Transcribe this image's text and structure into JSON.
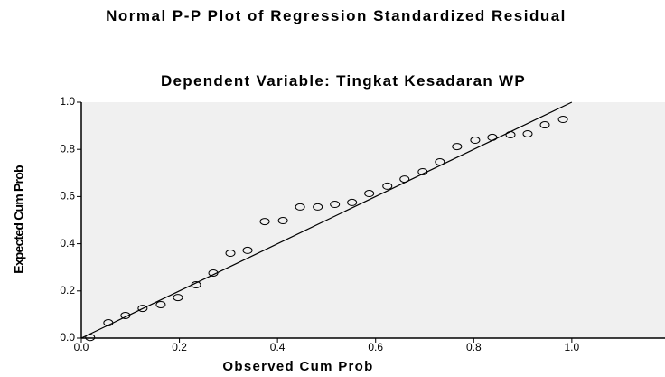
{
  "chart_data": {
    "type": "scatter",
    "title": "Normal P-P Plot of Regression Standardized Residual",
    "subtitle": "Dependent Variable: Tingkat Kesadaran WP",
    "xlabel": "Observed Cum Prob",
    "ylabel": "Expected Cum Prob",
    "x": [
      0.018,
      0.055,
      0.09,
      0.125,
      0.162,
      0.197,
      0.234,
      0.269,
      0.304,
      0.339,
      0.374,
      0.411,
      0.446,
      0.482,
      0.517,
      0.552,
      0.587,
      0.624,
      0.659,
      0.696,
      0.731,
      0.766,
      0.803,
      0.838,
      0.875,
      0.91,
      0.945,
      0.982
    ],
    "values": [
      0.003,
      0.065,
      0.096,
      0.126,
      0.142,
      0.172,
      0.226,
      0.276,
      0.36,
      0.372,
      0.494,
      0.498,
      0.556,
      0.556,
      0.567,
      0.575,
      0.613,
      0.644,
      0.674,
      0.705,
      0.747,
      0.812,
      0.839,
      0.851,
      0.862,
      0.866,
      0.904,
      0.927
    ],
    "color": "#000000",
    "xlim": [
      0,
      1.19
    ],
    "ylim": [
      0,
      1
    ],
    "xticks": [
      {
        "value": 0,
        "label": "0.0"
      },
      0.2,
      0.4,
      0.6,
      0.8,
      {
        "value": 1,
        "label": "1.0"
      }
    ],
    "yticks": [
      {
        "value": 0,
        "label": "0.0"
      },
      0.2,
      0.4,
      0.6,
      0.8,
      {
        "value": 1,
        "label": "1.0"
      }
    ],
    "background": "#f0f0f0"
  }
}
